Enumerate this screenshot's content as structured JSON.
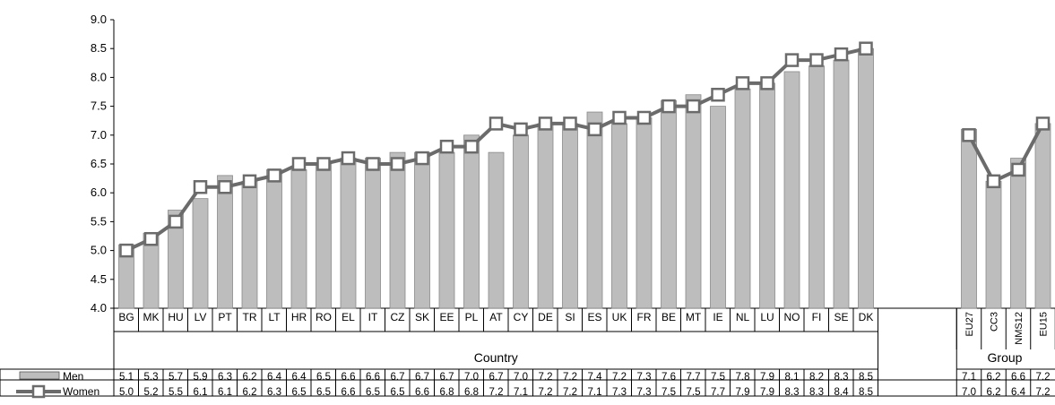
{
  "colors": {
    "men_fill": "#bdbdbd",
    "women_line": "#6b6b6b",
    "marker_fill": "#ffffff",
    "axis": "#000000"
  },
  "chart_data": {
    "type": "bar",
    "title": "",
    "xlabel": "",
    "ylabel": "",
    "ylim": [
      4.0,
      9.0
    ],
    "yticks": [
      "4.0",
      "4.5",
      "5.0",
      "5.5",
      "6.0",
      "6.5",
      "7.0",
      "7.5",
      "8.0",
      "8.5",
      "9.0"
    ],
    "grid": false,
    "group_labels": {
      "country": "Country",
      "group": "Group"
    },
    "categories": [
      "BG",
      "MK",
      "HU",
      "LV",
      "PT",
      "TR",
      "LT",
      "HR",
      "RO",
      "EL",
      "IT",
      "CZ",
      "SK",
      "EE",
      "PL",
      "AT",
      "CY",
      "DE",
      "SI",
      "ES",
      "UK",
      "FR",
      "BE",
      "MT",
      "IE",
      "NL",
      "LU",
      "NO",
      "FI",
      "SE",
      "DK",
      "",
      "EU27",
      "CC3",
      "NMS12",
      "EU15"
    ],
    "series": [
      {
        "name": "Men",
        "kind": "bar",
        "values": [
          5.1,
          5.3,
          5.7,
          5.9,
          6.3,
          6.2,
          6.4,
          6.4,
          6.5,
          6.6,
          6.6,
          6.7,
          6.7,
          6.7,
          7.0,
          6.7,
          7.0,
          7.2,
          7.2,
          7.4,
          7.2,
          7.3,
          7.6,
          7.7,
          7.5,
          7.8,
          7.9,
          8.1,
          8.2,
          8.3,
          8.5,
          null,
          7.1,
          6.2,
          6.6,
          7.2
        ]
      },
      {
        "name": "Women",
        "kind": "line",
        "values": [
          5.0,
          5.2,
          5.5,
          6.1,
          6.1,
          6.2,
          6.3,
          6.5,
          6.5,
          6.6,
          6.5,
          6.5,
          6.6,
          6.8,
          6.8,
          7.2,
          7.1,
          7.2,
          7.2,
          7.1,
          7.3,
          7.3,
          7.5,
          7.5,
          7.7,
          7.9,
          7.9,
          8.3,
          8.3,
          8.4,
          8.5,
          null,
          7.0,
          6.2,
          6.4,
          7.2
        ]
      }
    ],
    "table": {
      "rows": [
        {
          "label": "Men",
          "cells": [
            "5.1",
            "5.3",
            "5.7",
            "5.9",
            "6.3",
            "6.2",
            "6.4",
            "6.4",
            "6.5",
            "6.6",
            "6.6",
            "6.7",
            "6.7",
            "6.7",
            "7.0",
            "6.7",
            "7.0",
            "7.2",
            "7.2",
            "7.4",
            "7.2",
            "7.3",
            "7.6",
            "7.7",
            "7.5",
            "7.8",
            "7.9",
            "8.1",
            "8.2",
            "8.3",
            "8.5",
            "",
            "7.1",
            "6.2",
            "6.6",
            "7.2"
          ]
        },
        {
          "label": "Women",
          "cells": [
            "5.0",
            "5.2",
            "5.5",
            "6.1",
            "6.1",
            "6.2",
            "6.3",
            "6.5",
            "6.5",
            "6.6",
            "6.5",
            "6.5",
            "6.6",
            "6.8",
            "6.8",
            "7.2",
            "7.1",
            "7.2",
            "7.2",
            "7.1",
            "7.3",
            "7.3",
            "7.5",
            "7.5",
            "7.7",
            "7.9",
            "7.9",
            "8.3",
            "8.3",
            "8.4",
            "8.5",
            "",
            "7.0",
            "6.2",
            "6.4",
            "7.2"
          ]
        }
      ]
    }
  }
}
